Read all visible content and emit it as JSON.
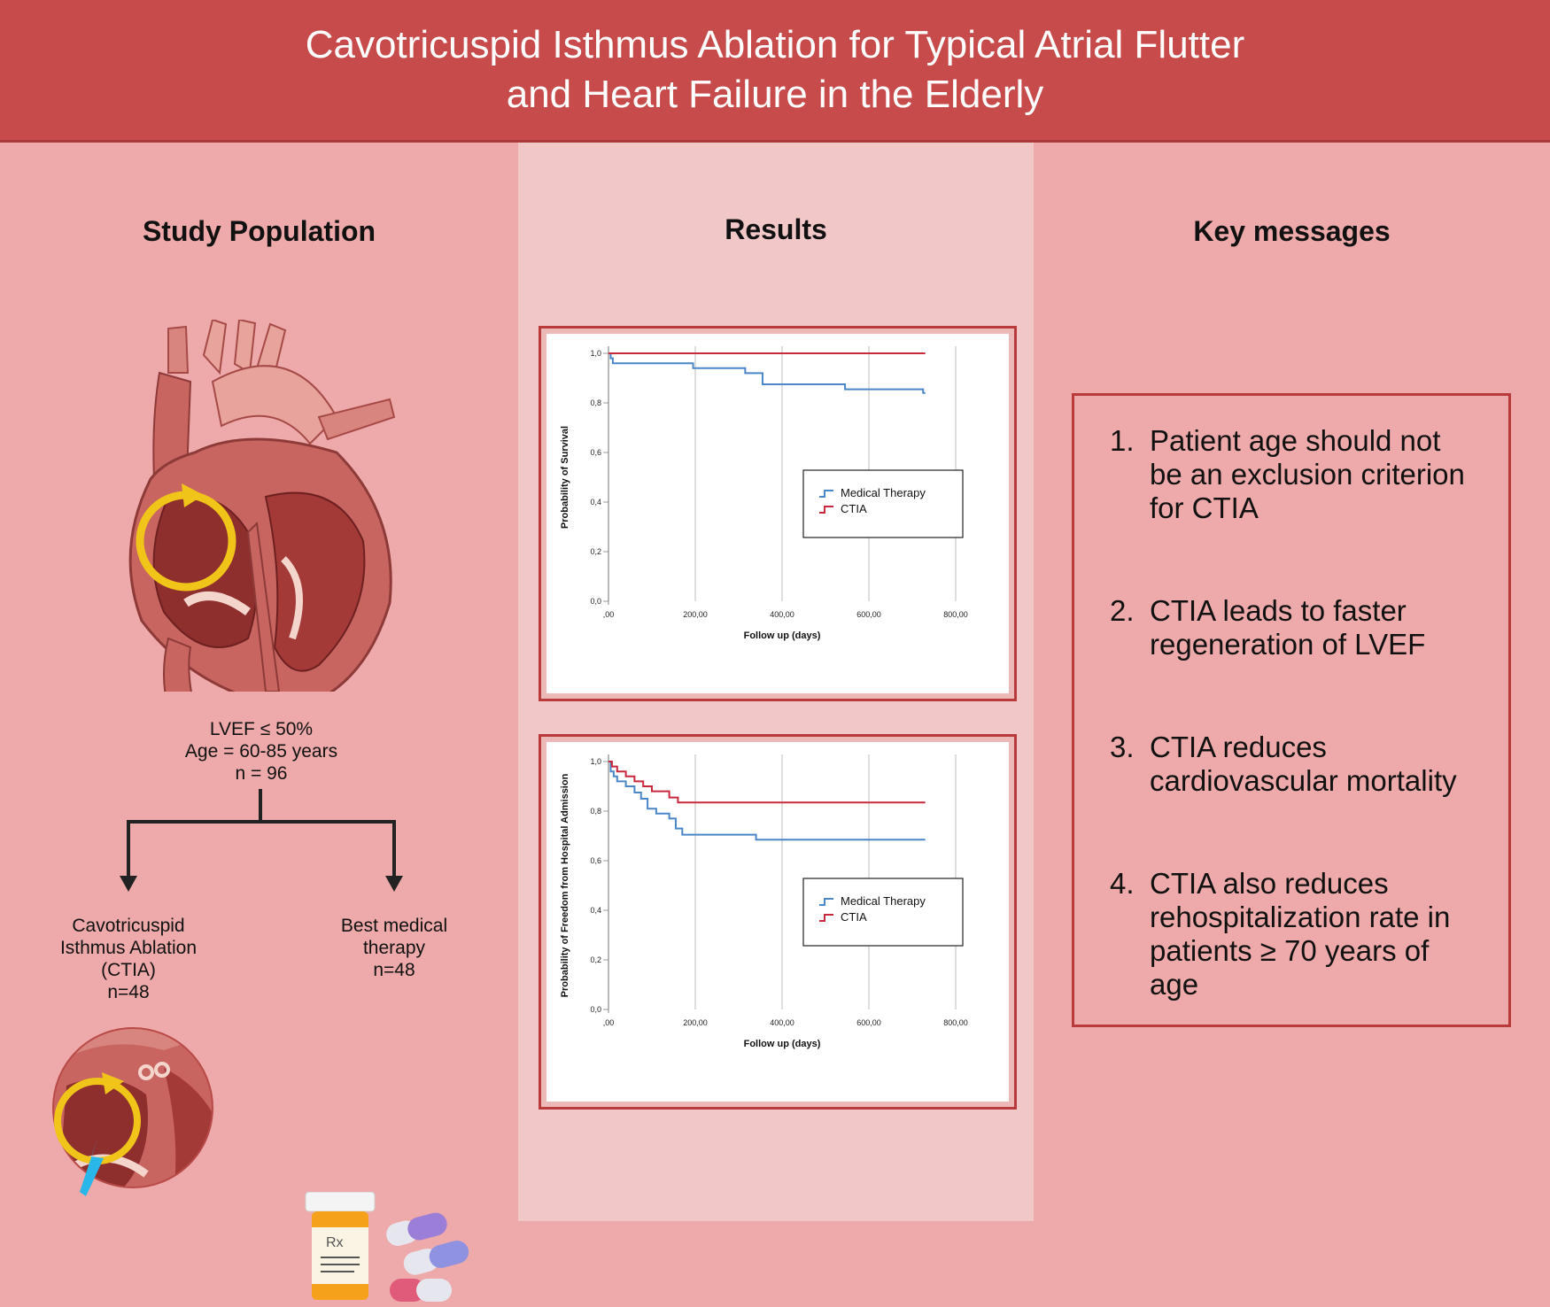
{
  "header": {
    "title_line1": "Cavotricuspid Isthmus Ablation for Typical Atrial Flutter",
    "title_line2": "and Heart Failure in the Elderly"
  },
  "study_population": {
    "heading": "Study Population",
    "criteria": [
      "LVEF ≤ 50%",
      "Age = 60-85 years",
      "n = 96"
    ],
    "branch_left": [
      "Cavotricuspid",
      "Isthmus Ablation",
      "(CTIA)",
      "n=48"
    ],
    "branch_right": [
      "Best medical",
      "therapy",
      "n=48"
    ],
    "icons": [
      "heart-icon",
      "ablation-heart-icon",
      "pill-bottle-icon",
      "capsule-icon"
    ],
    "pill_bottle_label": "Rx"
  },
  "results": {
    "heading": "Results"
  },
  "key_messages": {
    "heading": "Key messages",
    "items": [
      {
        "num": "1.",
        "lines": [
          "Patient age should not",
          "be an exclusion criterion",
          "for CTIA"
        ]
      },
      {
        "num": "2.",
        "lines": [
          "CTIA leads to faster",
          "regeneration of LVEF"
        ]
      },
      {
        "num": "3.",
        "lines": [
          "CTIA reduces",
          "cardiovascular mortality"
        ]
      },
      {
        "num": "4.",
        "lines": [
          "CTIA also reduces",
          "rehospitalization rate in",
          "patients ≥ 70 years of",
          "age"
        ]
      }
    ]
  },
  "colors": {
    "header": "#c84b4b",
    "medical_therapy": "#4a86c8",
    "ctia": "#c8283c",
    "border": "#b83a3a"
  },
  "chart_data": [
    {
      "type": "line",
      "title": "",
      "xlabel": "Follow up (days)",
      "ylabel": "Probability of Survival",
      "xlim": [
        0,
        800
      ],
      "ylim": [
        0,
        1
      ],
      "xticks": [
        ",00",
        "200,00",
        "400,00",
        "600,00",
        "800,00"
      ],
      "yticks": [
        "0,0",
        "0,2",
        "0,4",
        "0,6",
        "0,8",
        "1,0"
      ],
      "legend": "center-right",
      "series": [
        {
          "name": "Medical Therapy",
          "color": "#4a86c8",
          "x": [
            0,
            5,
            10,
            195,
            315,
            355,
            545,
            725,
            730
          ],
          "y": [
            1.0,
            0.98,
            0.96,
            0.94,
            0.92,
            0.875,
            0.855,
            0.84,
            0.84
          ]
        },
        {
          "name": "CTIA",
          "color": "#c8283c",
          "x": [
            0,
            730
          ],
          "y": [
            1.0,
            1.0
          ]
        }
      ]
    },
    {
      "type": "line",
      "title": "",
      "xlabel": "Follow up (days)",
      "ylabel": "Probability of Freedom from Hospital Admission",
      "xlim": [
        0,
        800
      ],
      "ylim": [
        0,
        1
      ],
      "xticks": [
        ",00",
        "200,00",
        "400,00",
        "600,00",
        "800,00"
      ],
      "yticks": [
        "0,0",
        "0,2",
        "0,4",
        "0,6",
        "0,8",
        "1,0"
      ],
      "legend": "center-right",
      "series": [
        {
          "name": "Medical Therapy",
          "color": "#4a86c8",
          "x": [
            0,
            5,
            12,
            20,
            40,
            60,
            75,
            90,
            110,
            140,
            155,
            170,
            340,
            730
          ],
          "y": [
            1.0,
            0.96,
            0.94,
            0.92,
            0.9,
            0.875,
            0.85,
            0.81,
            0.79,
            0.77,
            0.73,
            0.705,
            0.685,
            0.685
          ]
        },
        {
          "name": "CTIA",
          "color": "#c8283c",
          "x": [
            0,
            8,
            20,
            40,
            60,
            80,
            100,
            140,
            160,
            730
          ],
          "y": [
            1.0,
            0.98,
            0.96,
            0.94,
            0.92,
            0.9,
            0.88,
            0.855,
            0.835,
            0.835
          ]
        }
      ]
    }
  ]
}
